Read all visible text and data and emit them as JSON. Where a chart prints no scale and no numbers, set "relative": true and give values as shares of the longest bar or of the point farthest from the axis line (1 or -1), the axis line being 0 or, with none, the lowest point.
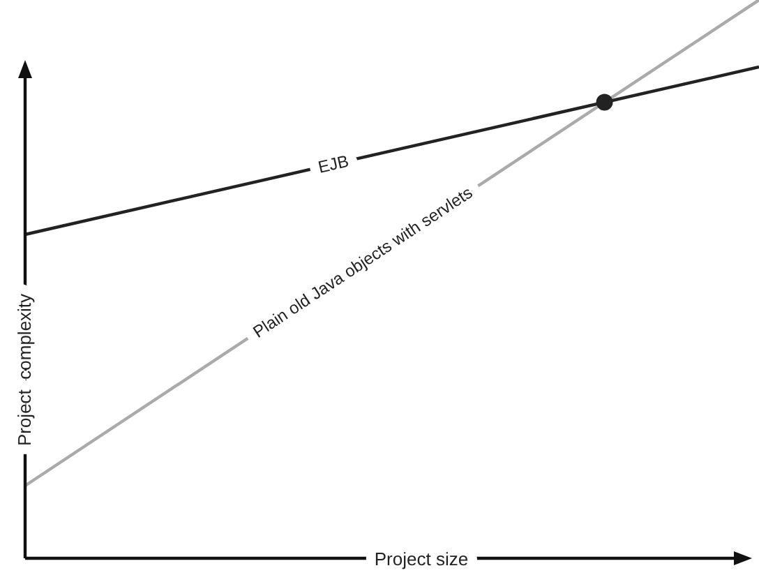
{
  "chart_data": {
    "type": "line",
    "relative": true,
    "xlabel": "Project size",
    "ylabel": "Project  complexity",
    "categories": [
      null,
      null
    ],
    "series": [
      {
        "name": "EJB",
        "color": "#222222",
        "values": [
          0.58,
          0.88
        ]
      },
      {
        "name": "Plain old Java objects with servlets",
        "color": "#aaaaaa",
        "values": [
          0.13,
          1
        ]
      }
    ],
    "marker": "none",
    "line_style": "solid"
  }
}
